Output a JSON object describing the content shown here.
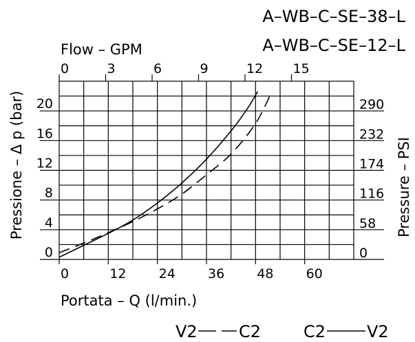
{
  "chart_data": {
    "type": "line",
    "titles": [
      "A–WB–C–SE–38–L",
      "A–WB–C–SE–12–L"
    ],
    "xlabel": "Portata – Q (l/min.)",
    "x2label": "Flow – GPM",
    "ylabel": "Pressione – Δ p (bar)",
    "y2label": "Pressure – PSI",
    "xlim": [
      0,
      72
    ],
    "ylim": [
      0,
      24
    ],
    "x_ticks": [
      "0",
      "12",
      "24",
      "36",
      "48",
      "60"
    ],
    "x_tick_values": [
      0,
      12,
      24,
      36,
      48,
      60
    ],
    "x2_ticks": [
      "0",
      "3",
      "6",
      "9",
      "12",
      "15"
    ],
    "x2_tick_values": [
      0,
      3,
      6,
      9,
      12,
      15
    ],
    "y_ticks": [
      "0",
      "4",
      "8",
      "12",
      "16",
      "20"
    ],
    "y_tick_values": [
      0,
      4,
      8,
      12,
      16,
      20
    ],
    "y2_ticks": [
      "0",
      "58",
      "116",
      "174",
      "232",
      "290"
    ],
    "y2_tick_values": [
      0,
      4,
      8,
      12,
      16,
      20
    ],
    "grid": true,
    "series": [
      {
        "name": "C2——V2",
        "style": "solid",
        "x": [
          0,
          6,
          12,
          18,
          24,
          30,
          36,
          42,
          46,
          48.5
        ],
        "y": [
          0.3,
          1.9,
          3.5,
          5.3,
          7.6,
          10.3,
          13.5,
          17.3,
          20.3,
          22.6
        ]
      },
      {
        "name": "V2— —C2",
        "style": "dashed",
        "x": [
          0,
          6,
          12,
          18,
          24,
          30,
          36,
          42,
          48,
          52
        ],
        "y": [
          0.9,
          2.2,
          3.6,
          5.1,
          6.8,
          8.8,
          11.4,
          14.2,
          18.3,
          22.6
        ]
      }
    ],
    "legend": {
      "dashed_label_left": "V2",
      "dashed_label_right": "C2",
      "solid_label_left": "C2",
      "solid_label_right": "V2",
      "position": "bottom-right"
    }
  }
}
